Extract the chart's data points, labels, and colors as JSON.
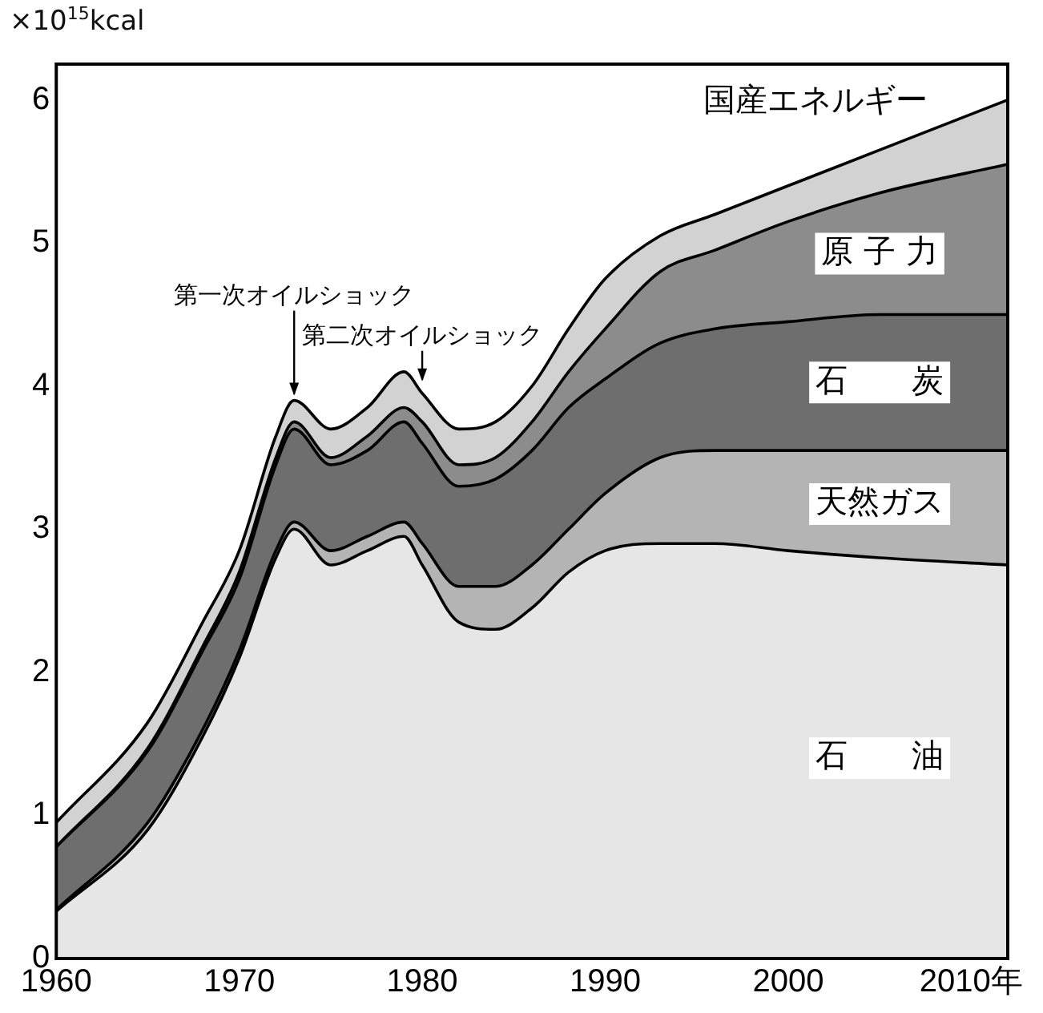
{
  "chart_data": {
    "type": "area",
    "stacked": true,
    "ylabel": "×10$^{15}$kcal",
    "x": [
      1960,
      1965,
      1968,
      1970,
      1972,
      1973,
      1975,
      1977,
      1979,
      1980,
      1982,
      1984,
      1986,
      1988,
      1990,
      1993,
      1996,
      2000,
      2005,
      2012
    ],
    "series": [
      {
        "name": "石　　油",
        "color": "#e6e6e6",
        "values": [
          0.33,
          0.9,
          1.55,
          2.1,
          2.8,
          3.0,
          2.75,
          2.85,
          2.95,
          2.75,
          2.35,
          2.3,
          2.45,
          2.7,
          2.85,
          2.9,
          2.9,
          2.85,
          2.8,
          2.75
        ]
      },
      {
        "name": "天然ガス",
        "color": "#b4b4b4",
        "values": [
          0.01,
          0.05,
          0.05,
          0.05,
          0.05,
          0.05,
          0.1,
          0.1,
          0.1,
          0.15,
          0.25,
          0.3,
          0.3,
          0.3,
          0.4,
          0.6,
          0.65,
          0.7,
          0.75,
          0.8
        ]
      },
      {
        "name": "石　　炭",
        "color": "#6e6e6e",
        "values": [
          0.44,
          0.5,
          0.55,
          0.5,
          0.6,
          0.65,
          0.6,
          0.6,
          0.7,
          0.7,
          0.7,
          0.75,
          0.8,
          0.85,
          0.8,
          0.8,
          0.85,
          0.9,
          0.95,
          0.95
        ]
      },
      {
        "name": "原 子 力",
        "color": "#8c8c8c",
        "values": [
          0,
          0.02,
          0.03,
          0.05,
          0.05,
          0.05,
          0.05,
          0.1,
          0.1,
          0.15,
          0.15,
          0.15,
          0.2,
          0.25,
          0.35,
          0.5,
          0.55,
          0.7,
          0.85,
          1.05
        ]
      },
      {
        "name": "国産エネルギー",
        "color": "#d2d2d2",
        "values": [
          0.17,
          0.18,
          0.17,
          0.15,
          0.15,
          0.15,
          0.2,
          0.2,
          0.25,
          0.2,
          0.25,
          0.25,
          0.25,
          0.3,
          0.35,
          0.25,
          0.25,
          0.25,
          0.3,
          0.45
        ]
      }
    ],
    "xlim": [
      1960,
      2012
    ],
    "xticks": [
      1960,
      1970,
      1980,
      1990,
      2000,
      {
        "value": 2010,
        "label": "2010年"
      }
    ],
    "ylim": [
      0,
      6.25
    ],
    "yticks": [
      0,
      1,
      2,
      3,
      4,
      5,
      6
    ],
    "annotations": [
      {
        "text": "第一次オイルショック",
        "x": 1973,
        "y": 3.9
      },
      {
        "text": "第二次オイルショック",
        "x": 1980,
        "y": 4.0
      }
    ],
    "grid": false,
    "legend": false
  }
}
